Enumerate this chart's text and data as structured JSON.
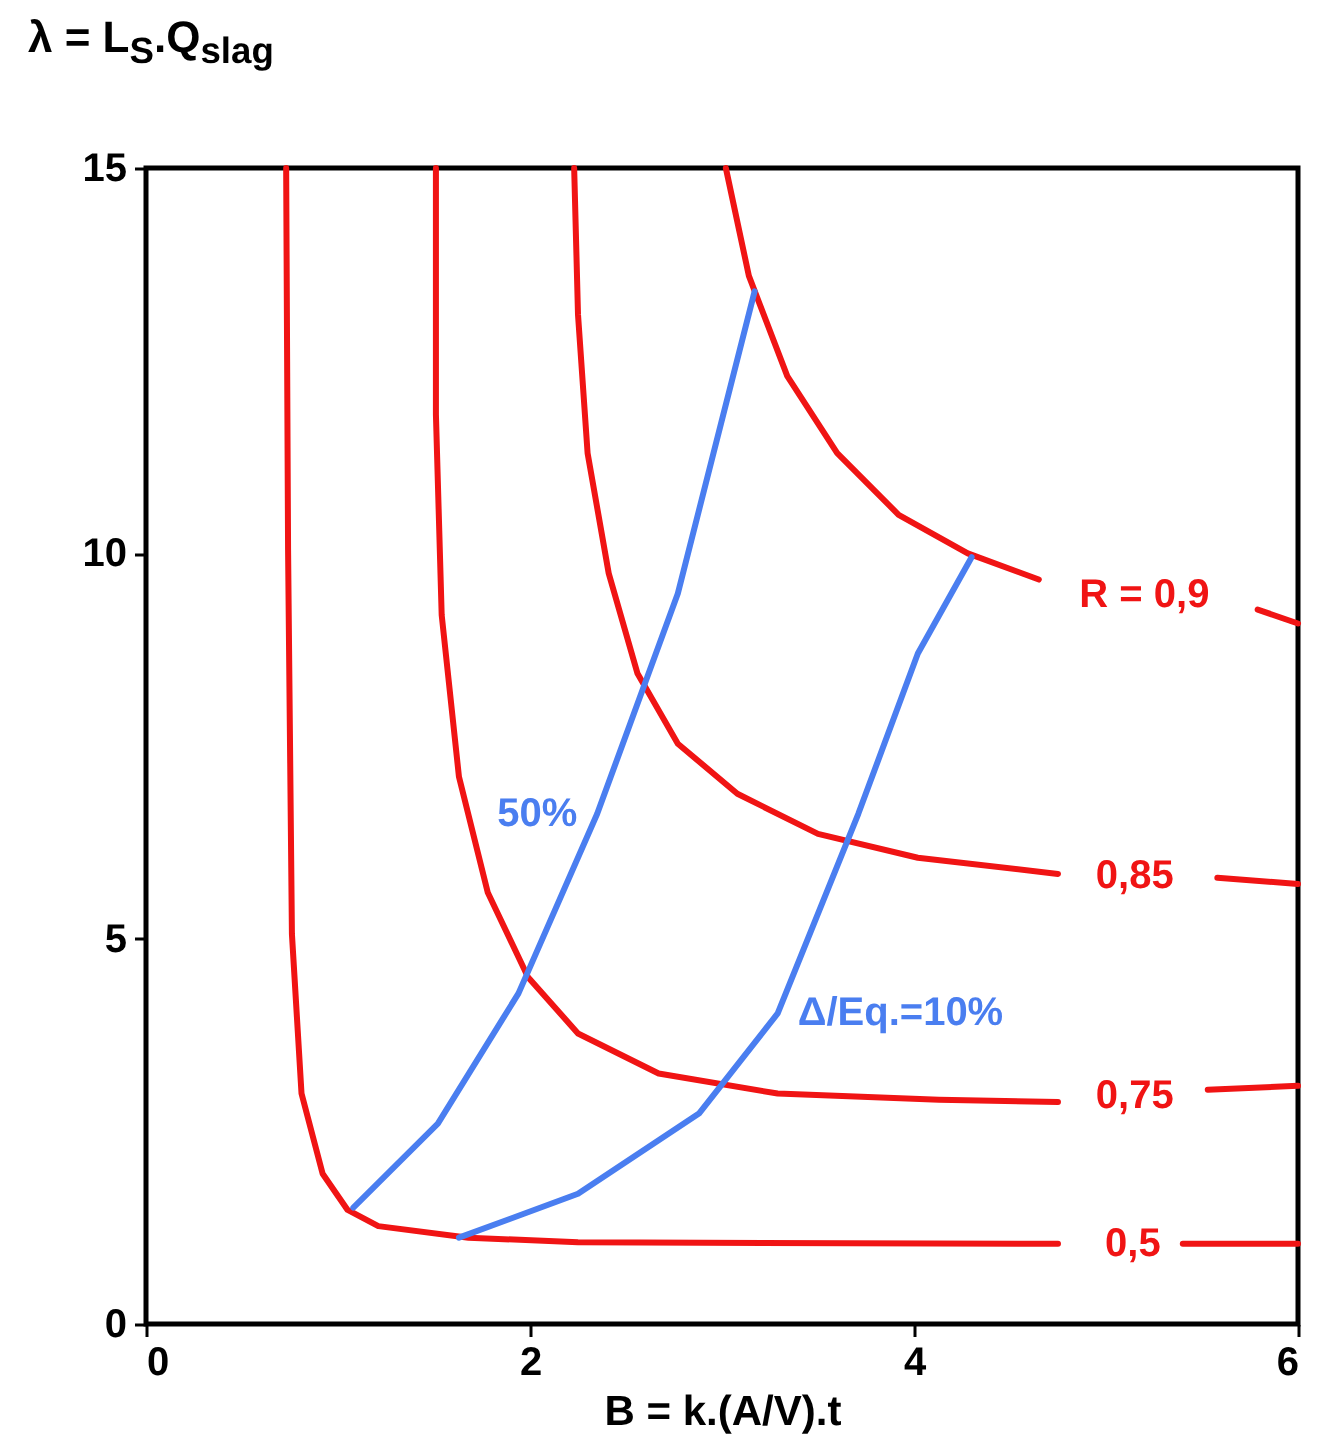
{
  "chart_data": {
    "type": "line",
    "xlabel": "B = k.(A/V).t",
    "ylabel": "λ = L$_{S}$.Q$_{slag}$",
    "xlim": [
      0,
      6
    ],
    "ylim": [
      0,
      15
    ],
    "xticks": [
      0,
      2,
      4,
      6
    ],
    "yticks": [
      0,
      5,
      10,
      15
    ],
    "grid": false,
    "legend": false,
    "marker": "none",
    "line_style": "solid",
    "series": [
      {
        "name": "R = 0,9",
        "color": "#f01414",
        "x": [
          3.02,
          3.14,
          3.34,
          3.6,
          3.92,
          4.28,
          4.65,
          5.2,
          5.79,
          6.0
        ],
        "values": [
          15,
          13.6,
          12.3,
          11.3,
          10.5,
          10.0,
          9.66,
          null,
          9.27,
          9.09
        ]
      },
      {
        "name": "0,85",
        "color": "#f01414",
        "x": [
          2.23,
          2.25,
          2.3,
          2.41,
          2.56,
          2.77,
          3.08,
          3.5,
          4.02,
          4.75,
          5.15,
          5.58,
          6.0
        ],
        "values": [
          15,
          13.1,
          11.3,
          9.74,
          8.44,
          7.53,
          6.88,
          6.36,
          6.05,
          5.84,
          null,
          5.79,
          5.71
        ]
      },
      {
        "name": "0,75",
        "color": "#f01414",
        "x": [
          1.51,
          1.51,
          1.54,
          1.63,
          1.78,
          1.99,
          2.25,
          2.67,
          3.29,
          4.13,
          4.75,
          5.15,
          5.53,
          6.0
        ],
        "values": [
          15,
          11.8,
          9.2,
          7.1,
          5.6,
          4.5,
          3.77,
          3.25,
          2.99,
          2.91,
          2.88,
          null,
          3.04,
          3.09
        ]
      },
      {
        "name": "0,5",
        "color": "#f01414",
        "x": [
          0.73,
          0.74,
          0.76,
          0.81,
          0.92,
          1.05,
          1.21,
          1.68,
          2.25,
          4.75,
          5.14,
          5.4,
          6.0
        ],
        "values": [
          15,
          10.04,
          5.06,
          2.99,
          1.95,
          1.48,
          1.27,
          1.12,
          1.06,
          1.04,
          null,
          1.04,
          1.04
        ]
      },
      {
        "name": "50%",
        "color": "#4a7ef0",
        "x": [
          1.08,
          1.52,
          1.94,
          2.35,
          2.77,
          3.17
        ],
        "values": [
          1.51,
          2.6,
          4.29,
          6.62,
          9.48,
          13.4
        ]
      },
      {
        "name": "Δ/Eq.=10%",
        "color": "#4a7ef0",
        "x": [
          1.63,
          2.25,
          2.88,
          3.29,
          3.71,
          4.02,
          4.3
        ],
        "values": [
          1.12,
          1.69,
          2.73,
          4.03,
          6.62,
          8.7,
          9.95
        ]
      }
    ]
  }
}
